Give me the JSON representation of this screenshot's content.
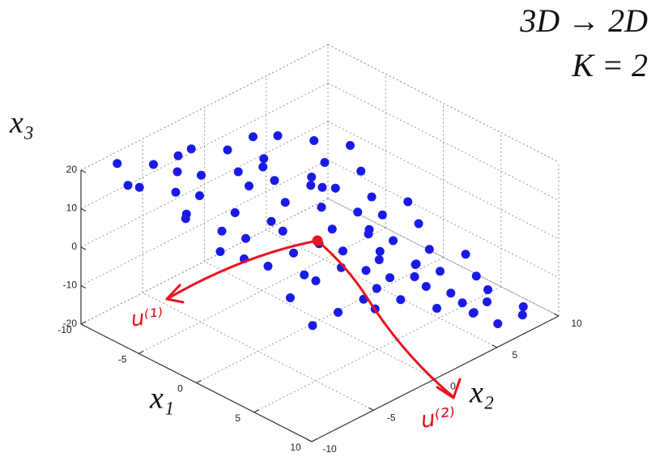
{
  "chart_data": {
    "type": "scatter3d",
    "annotations": [
      "3D → 2D",
      "K = 2",
      "u⁽¹⁾",
      "u⁽²⁾"
    ],
    "xlabel": "x₁",
    "ylabel": "x₂",
    "zlabel": "x₃",
    "color": "#1a1ae6",
    "grid": true,
    "xlim": [
      -10,
      10
    ],
    "ylim": [
      -10,
      10
    ],
    "zlim": [
      -20,
      20
    ],
    "xticks": [
      -10,
      -5,
      0,
      5,
      10
    ],
    "yticks": [
      -10,
      -5,
      0,
      5,
      10
    ],
    "zticks": [
      -20,
      -10,
      0,
      10,
      20
    ],
    "x": [
      -9,
      -8,
      -7,
      -6,
      -5,
      -4,
      -3,
      -2,
      -1,
      0,
      1,
      2,
      3,
      4,
      5,
      6,
      7,
      8,
      9,
      -9,
      -8,
      -7,
      -6,
      -5,
      -4,
      -3,
      -2,
      -1,
      0,
      1,
      2,
      3,
      4,
      5,
      6,
      7,
      8,
      9,
      -9,
      -8,
      -7,
      -6,
      -5,
      -4,
      -3,
      -2,
      -1,
      0,
      1,
      2,
      3,
      4,
      5,
      6,
      7,
      8,
      9,
      -8,
      -6,
      -4,
      -2,
      0,
      2,
      4,
      6,
      8,
      -7,
      -3,
      1,
      5,
      7,
      9,
      -5,
      -1,
      3,
      0,
      -9,
      6,
      2,
      -6,
      4,
      8
    ],
    "y": [
      -8,
      -6,
      -9,
      -4,
      -7,
      -2,
      -8,
      -5,
      -3,
      -6,
      -9,
      -4,
      -7,
      -2,
      -5,
      -8,
      -3,
      -6,
      -9,
      -2,
      0,
      2,
      -1,
      1,
      3,
      0,
      2,
      4,
      1,
      3,
      0,
      2,
      4,
      1,
      3,
      0,
      2,
      4,
      5,
      7,
      9,
      6,
      8,
      5,
      7,
      9,
      6,
      8,
      5,
      7,
      9,
      6,
      8,
      5,
      7,
      9,
      6,
      -4,
      -9,
      -6,
      -9,
      -3,
      -8,
      -5,
      -1,
      -3,
      -5,
      3,
      -1,
      3,
      5,
      8,
      4,
      -7,
      5,
      4,
      3,
      8,
      3,
      1,
      0,
      5
    ],
    "z": [
      20,
      18,
      19,
      15,
      17,
      12,
      16,
      13,
      9,
      11,
      14,
      7,
      10,
      3,
      6,
      8,
      1,
      4,
      7,
      14,
      12,
      8,
      11,
      7,
      4,
      6,
      3,
      0,
      2,
      -1,
      1,
      -3,
      -6,
      -3,
      -7,
      -4,
      -8,
      -11,
      6,
      3,
      0,
      2,
      -2,
      0,
      -4,
      -7,
      -4,
      -8,
      -6,
      -10,
      -13,
      -11,
      -14,
      -12,
      -16,
      -19,
      -17,
      17,
      20,
      16,
      18,
      8,
      12,
      6,
      -1,
      0,
      16,
      5,
      3,
      -6,
      -13,
      -18,
      3,
      13,
      -9,
      -3,
      9,
      -16,
      -4,
      9,
      -1,
      -14
    ]
  }
}
